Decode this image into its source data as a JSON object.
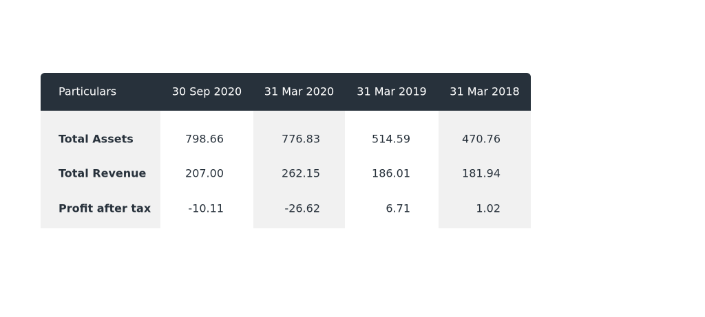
{
  "table": {
    "headers": [
      "Particulars",
      "30 Sep 2020",
      "31 Mar 2020",
      "31 Mar 2019",
      "31 Mar 2018"
    ],
    "rows": [
      [
        "Total Assets",
        "798.66",
        "776.83",
        "514.59",
        "470.76"
      ],
      [
        "Total Revenue",
        "207.00",
        "262.15",
        "186.01",
        "181.94"
      ],
      [
        "Profit after tax",
        "-10.11",
        "-26.62",
        "6.71",
        "1.02"
      ]
    ]
  }
}
